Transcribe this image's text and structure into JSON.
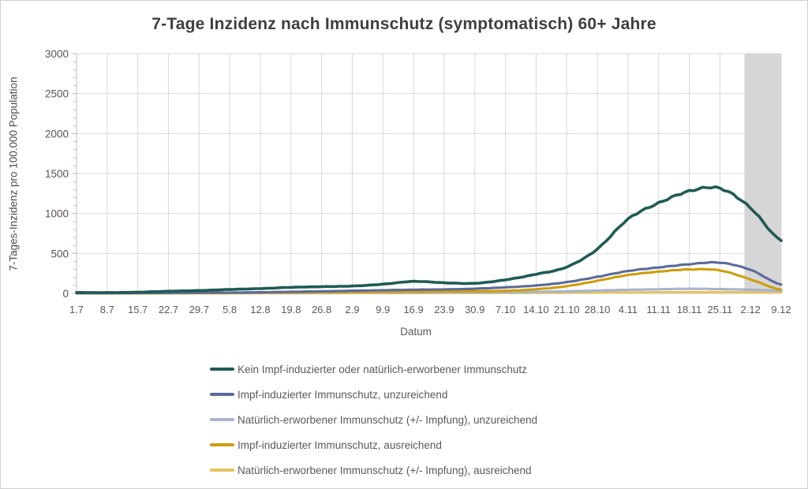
{
  "title": "7-Tage Inzidenz nach Immunschutz (symptomatisch) 60+ Jahre",
  "chart_data": {
    "type": "line",
    "title": "7-Tage Inzidenz nach Immunschutz (symptomatisch) 60+ Jahre",
    "xlabel": "Datum",
    "ylabel": "7-Tages-Inzidenz pro 100.000 Population",
    "ylim": [
      0,
      3000
    ],
    "y_ticks": [
      0,
      500,
      1000,
      1500,
      2000,
      2500,
      3000
    ],
    "y_minor_step": 100,
    "grid": true,
    "legend_position": "bottom",
    "categories": [
      "1.7",
      "8.7",
      "15.7",
      "22.7",
      "29.7",
      "5.8",
      "12.8",
      "19.8",
      "26.8",
      "2.9",
      "9.9",
      "16.9",
      "23.9",
      "30.9",
      "7.10",
      "14.10",
      "21.10",
      "28.10",
      "4.11",
      "11.11",
      "18.11",
      "25.11",
      "2.12",
      "9.12"
    ],
    "series": [
      {
        "name": "Kein Impf-induzierter oder natürlich-erworbener Immunschutz",
        "color": "#205a55",
        "values": [
          12,
          10,
          15,
          27,
          36,
          49,
          60,
          76,
          84,
          92,
          115,
          150,
          133,
          126,
          170,
          240,
          330,
          555,
          930,
          1130,
          1280,
          1315,
          1070,
          660
        ]
      },
      {
        "name": "Impf-induzierter Immunschutz, unzureichend",
        "color": "#5c6a99",
        "values": [
          3,
          3,
          4,
          6,
          8,
          10,
          14,
          20,
          26,
          33,
          40,
          46,
          50,
          59,
          76,
          99,
          141,
          207,
          280,
          325,
          365,
          385,
          295,
          110
        ]
      },
      {
        "name": "Natürlich-erworbener Immunschutz (+/- Impfung), unzureichend",
        "color": "#a8b2d0",
        "values": [
          2,
          2,
          3,
          4,
          5,
          6,
          7,
          8,
          9,
          10,
          11,
          12,
          13,
          14,
          16,
          20,
          26,
          35,
          45,
          52,
          58,
          54,
          46,
          33
        ]
      },
      {
        "name": "Impf-induzierter Immunschutz, ausreichend",
        "color": "#cc9e0a",
        "values": [
          1,
          1,
          2,
          3,
          5,
          7,
          9,
          12,
          15,
          18,
          20,
          22,
          26,
          28,
          33,
          52,
          90,
          158,
          230,
          272,
          300,
          288,
          175,
          45
        ]
      },
      {
        "name": "Natürlich-erworbener Immunschutz (+/- Impfung), ausreichend",
        "color": "#e6c35f",
        "values": [
          1,
          1,
          1,
          2,
          2,
          2,
          3,
          3,
          3,
          4,
          4,
          4,
          5,
          5,
          6,
          7,
          8,
          10,
          12,
          14,
          16,
          16,
          14,
          15
        ]
      }
    ],
    "highlight_band": {
      "from_index": 21.8,
      "to_index": 23,
      "color": "#d6d6d6"
    }
  },
  "colors": {
    "gridline": "#d9d9d9",
    "axis_line": "#bfbfbf",
    "y_tick_label": "#5a524e",
    "x_tick_label": "#595959",
    "title_text": "#3f3f3f"
  }
}
